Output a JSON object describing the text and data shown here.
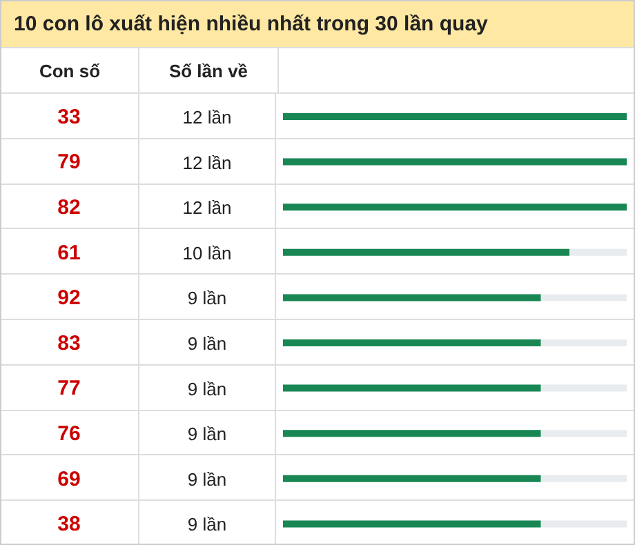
{
  "chart_data": {
    "type": "bar",
    "orientation": "horizontal",
    "title": "10 con lô xuất hiện nhiều nhất trong 30 lần quay",
    "xlabel": "Số lần về",
    "ylabel": "Con số",
    "categories": [
      "33",
      "79",
      "82",
      "61",
      "92",
      "83",
      "77",
      "76",
      "69",
      "38"
    ],
    "values": [
      12,
      12,
      12,
      10,
      9,
      9,
      9,
      9,
      9,
      9
    ],
    "value_labels": [
      "12 lần",
      "12 lần",
      "12 lần",
      "10 lần",
      "9 lần",
      "9 lần",
      "9 lần",
      "9 lần",
      "9 lần",
      "9 lần"
    ],
    "color": "#198754"
  }
}
